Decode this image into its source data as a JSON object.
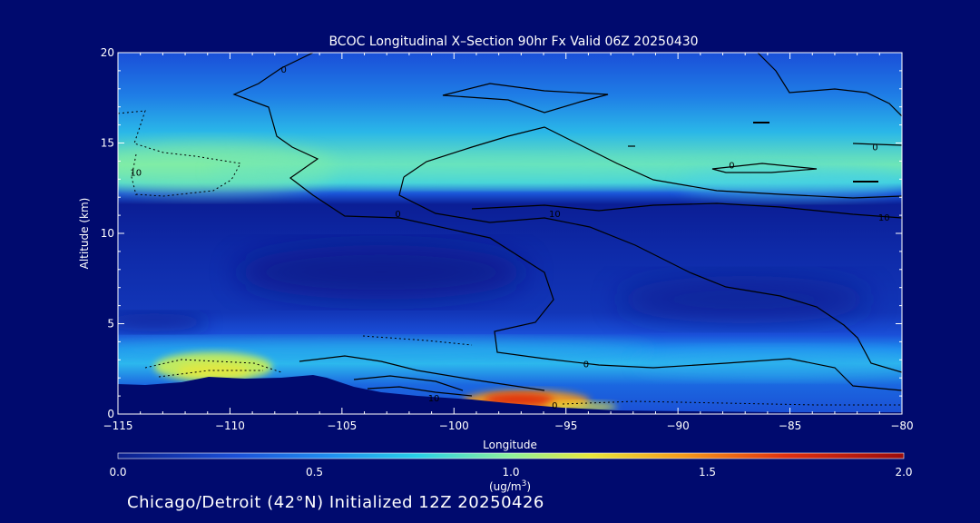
{
  "chart_data": {
    "type": "heatmap",
    "title": "BCOC Longitudinal X–Section 90hr  Fx Valid 06Z 20250430",
    "xlabel": "Longitude",
    "ylabel": "Altitude (km)",
    "xlim": [
      -115,
      -80
    ],
    "ylim": [
      0,
      20
    ],
    "x_ticks": [
      -115,
      -110,
      -105,
      -100,
      -95,
      -90,
      -85,
      -80
    ],
    "x_tick_labels": [
      "−115",
      "−110",
      "−105",
      "−100",
      "−95",
      "−90",
      "−85",
      "−80"
    ],
    "y_ticks": [
      0,
      5,
      10,
      15,
      20
    ],
    "y_tick_labels": [
      "0",
      "5",
      "10",
      "15",
      "20"
    ],
    "colorbar": {
      "min": 0.0,
      "max": 2.0,
      "ticks": [
        0.0,
        0.5,
        1.0,
        1.5,
        2.0
      ],
      "tick_labels": [
        "0.0",
        "0.5",
        "1.0",
        "1.5",
        "2.0"
      ],
      "unit_line1": "(ug/m",
      "unit_sup": "3",
      "unit_line2": ")",
      "colors": [
        "#0a1e8c",
        "#1a4fd8",
        "#1f8ef0",
        "#27cfe8",
        "#8ef29a",
        "#e8e83a",
        "#f59a1a",
        "#e0300f",
        "#9a0b0b"
      ]
    },
    "contour_labels": [
      {
        "text": "0",
        "x": -107.6,
        "y": 19.1
      },
      {
        "text": "10",
        "x": -114.2,
        "y": 13.4
      },
      {
        "text": "0",
        "x": -87.6,
        "y": 13.8
      },
      {
        "text": "0",
        "x": -81.2,
        "y": 14.8
      },
      {
        "text": "0",
        "x": -102.5,
        "y": 11.1
      },
      {
        "text": "10",
        "x": -95.5,
        "y": 11.1
      },
      {
        "text": "10",
        "x": -80.8,
        "y": 10.9
      },
      {
        "text": "0",
        "x": -94.1,
        "y": 2.8
      },
      {
        "text": "10",
        "x": -100.9,
        "y": 0.9
      },
      {
        "text": "0",
        "x": -95.5,
        "y": 0.5
      }
    ]
  },
  "footer": {
    "caption": "Chicago/Detroit (42°N) Initialized 12Z 20250426"
  }
}
